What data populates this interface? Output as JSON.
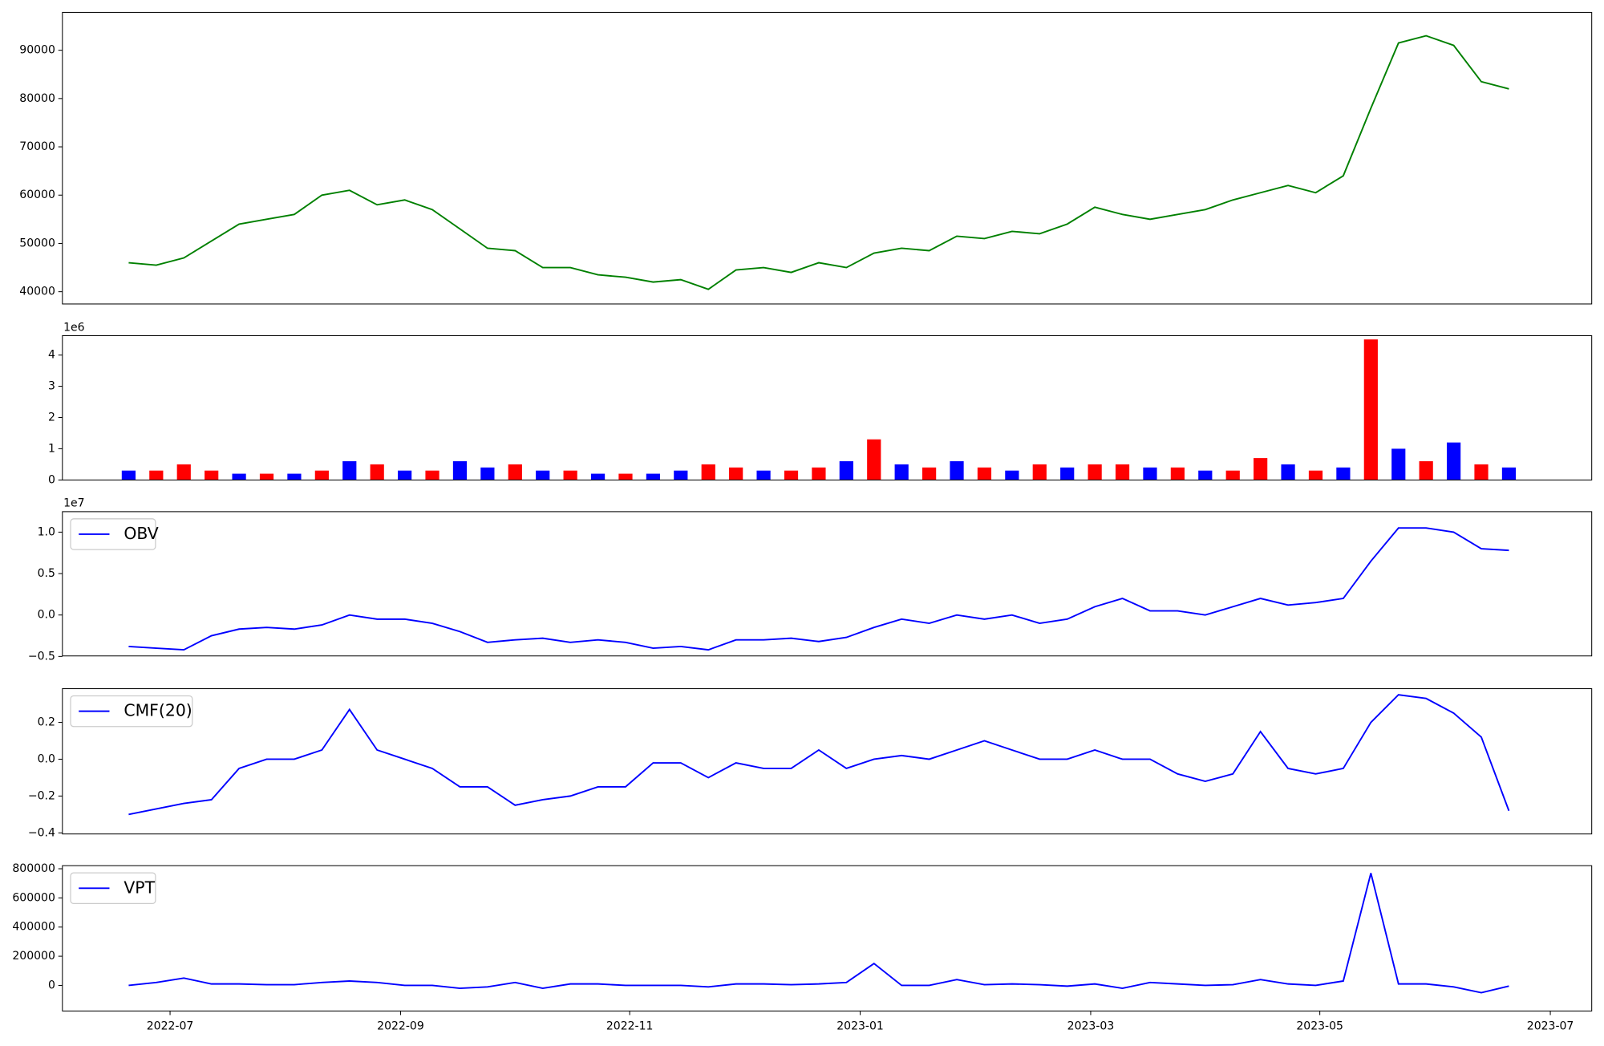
{
  "chart_data": [
    {
      "type": "line",
      "x": [
        2022.47,
        2022.49,
        2022.51,
        2022.53,
        2022.55,
        2022.57,
        2022.59,
        2022.61,
        2022.63,
        2022.65,
        2022.67,
        2022.69,
        2022.71,
        2022.73,
        2022.75,
        2022.77,
        2022.79,
        2022.81,
        2022.83,
        2022.85,
        2022.87,
        2022.89,
        2022.91,
        2022.93,
        2022.95,
        2022.97,
        2022.99,
        2023.01,
        2023.03,
        2023.05,
        2023.07,
        2023.09,
        2023.11,
        2023.13,
        2023.15,
        2023.17,
        2023.19,
        2023.21,
        2023.23,
        2023.25,
        2023.27,
        2023.29,
        2023.31,
        2023.33,
        2023.35,
        2023.37,
        2023.39,
        2023.41,
        2023.43,
        2023.45,
        2023.47
      ],
      "values": [
        46000,
        45500,
        47000,
        50500,
        54000,
        55000,
        56000,
        60000,
        61000,
        58000,
        59000,
        57000,
        53000,
        49000,
        48500,
        45000,
        45000,
        43500,
        43000,
        42000,
        42500,
        40500,
        44500,
        45000,
        44000,
        46000,
        45000,
        48000,
        49000,
        48500,
        51500,
        51000,
        52500,
        52000,
        54000,
        57500,
        56000,
        55000,
        56000,
        57000,
        59000,
        60500,
        62000,
        60500,
        64000,
        78000,
        91500,
        93000,
        91000,
        83500,
        82000
      ],
      "color": "green",
      "xlim": [
        2022.422,
        2023.53
      ],
      "ylim": [
        37460,
        97840
      ],
      "yticks": [
        40000,
        50000,
        60000,
        70000,
        80000,
        90000
      ]
    },
    {
      "type": "bar",
      "x": [
        2022.47,
        2022.49,
        2022.51,
        2022.53,
        2022.55,
        2022.57,
        2022.59,
        2022.61,
        2022.63,
        2022.65,
        2022.67,
        2022.69,
        2022.71,
        2022.73,
        2022.75,
        2022.77,
        2022.79,
        2022.81,
        2022.83,
        2022.85,
        2022.87,
        2022.89,
        2022.91,
        2022.93,
        2022.95,
        2022.97,
        2022.99,
        2023.01,
        2023.03,
        2023.05,
        2023.07,
        2023.09,
        2023.11,
        2023.13,
        2023.15,
        2023.17,
        2023.19,
        2023.21,
        2023.23,
        2023.25,
        2023.27,
        2023.29,
        2023.31,
        2023.33,
        2023.35,
        2023.37,
        2023.39,
        2023.41,
        2023.43,
        2023.45,
        2023.47
      ],
      "values": [
        0.3,
        0.3,
        0.5,
        0.3,
        0.2,
        0.2,
        0.2,
        0.3,
        0.6,
        0.5,
        0.3,
        0.3,
        0.6,
        0.4,
        0.5,
        0.3,
        0.3,
        0.2,
        0.2,
        0.2,
        0.3,
        0.5,
        0.4,
        0.3,
        0.3,
        0.4,
        0.6,
        1.3,
        0.5,
        0.4,
        0.6,
        0.4,
        0.3,
        0.5,
        0.4,
        0.5,
        0.5,
        0.4,
        0.4,
        0.3,
        0.3,
        0.7,
        0.5,
        0.3,
        0.4,
        4.5,
        1.0,
        0.6,
        1.2,
        0.5,
        0.4
      ],
      "colors": [
        "blue",
        "red",
        "red",
        "red",
        "blue",
        "red",
        "blue",
        "red",
        "blue",
        "red",
        "blue",
        "red",
        "blue",
        "blue",
        "red",
        "blue",
        "red",
        "blue",
        "red",
        "blue",
        "blue",
        "red",
        "red",
        "blue",
        "red",
        "red",
        "blue",
        "red",
        "blue",
        "red",
        "blue",
        "red",
        "blue",
        "red",
        "blue",
        "red",
        "red",
        "blue",
        "red",
        "blue",
        "red",
        "red",
        "blue",
        "red",
        "blue",
        "red",
        "blue",
        "red",
        "blue",
        "red",
        "blue"
      ],
      "xlim": [
        2022.422,
        2023.53
      ],
      "ylim": [
        0,
        4.62
      ],
      "yticks": [
        0,
        1,
        2,
        3,
        4
      ],
      "y_offset_label": "1e6"
    },
    {
      "type": "line",
      "x": [
        2022.47,
        2022.49,
        2022.51,
        2022.53,
        2022.55,
        2022.57,
        2022.59,
        2022.61,
        2022.63,
        2022.65,
        2022.67,
        2022.69,
        2022.71,
        2022.73,
        2022.75,
        2022.77,
        2022.79,
        2022.81,
        2022.83,
        2022.85,
        2022.87,
        2022.89,
        2022.91,
        2022.93,
        2022.95,
        2022.97,
        2022.99,
        2023.01,
        2023.03,
        2023.05,
        2023.07,
        2023.09,
        2023.11,
        2023.13,
        2023.15,
        2023.17,
        2023.19,
        2023.21,
        2023.23,
        2023.25,
        2023.27,
        2023.29,
        2023.31,
        2023.33,
        2023.35,
        2023.37,
        2023.39,
        2023.41,
        2023.43,
        2023.45,
        2023.47
      ],
      "series": [
        {
          "name": "OBV",
          "color": "blue",
          "values": [
            -0.38,
            -0.4,
            -0.42,
            -0.25,
            -0.17,
            -0.15,
            -0.17,
            -0.12,
            0.0,
            -0.05,
            -0.05,
            -0.1,
            -0.2,
            -0.33,
            -0.3,
            -0.28,
            -0.33,
            -0.3,
            -0.33,
            -0.4,
            -0.38,
            -0.42,
            -0.3,
            -0.3,
            -0.28,
            -0.32,
            -0.27,
            -0.15,
            -0.05,
            -0.1,
            0.0,
            -0.05,
            0.0,
            -0.1,
            -0.05,
            0.1,
            0.2,
            0.05,
            0.05,
            0.0,
            0.1,
            0.2,
            0.12,
            0.15,
            0.2,
            0.65,
            1.05,
            1.05,
            1.0,
            0.8,
            0.78
          ]
        }
      ],
      "xlim": [
        2022.422,
        2023.53
      ],
      "ylim": [
        -0.494,
        1.247
      ],
      "yticks": [
        {
          "value": -0.5,
          "label": "−0.5"
        },
        {
          "value": 0,
          "label": "0.0"
        },
        {
          "value": 0.5,
          "label": "0.5"
        },
        {
          "value": 1,
          "label": "1.0"
        }
      ],
      "y_offset_label": "1e7",
      "legend": "upper left"
    },
    {
      "type": "line",
      "x": [
        2022.47,
        2022.49,
        2022.51,
        2022.53,
        2022.55,
        2022.57,
        2022.59,
        2022.61,
        2022.63,
        2022.65,
        2022.67,
        2022.69,
        2022.71,
        2022.73,
        2022.75,
        2022.77,
        2022.79,
        2022.81,
        2022.83,
        2022.85,
        2022.87,
        2022.89,
        2022.91,
        2022.93,
        2022.95,
        2022.97,
        2022.99,
        2023.01,
        2023.03,
        2023.05,
        2023.07,
        2023.09,
        2023.11,
        2023.13,
        2023.15,
        2023.17,
        2023.19,
        2023.21,
        2023.23,
        2023.25,
        2023.27,
        2023.29,
        2023.31,
        2023.33,
        2023.35,
        2023.37,
        2023.39,
        2023.41,
        2023.43,
        2023.45,
        2023.47
      ],
      "series": [
        {
          "name": "CMF(20)",
          "color": "blue",
          "values": [
            -0.3,
            -0.27,
            -0.24,
            -0.22,
            -0.05,
            0.0,
            0.0,
            0.05,
            0.27,
            0.05,
            0.0,
            -0.05,
            -0.15,
            -0.15,
            -0.25,
            -0.22,
            -0.2,
            -0.15,
            -0.15,
            -0.02,
            -0.02,
            -0.1,
            -0.02,
            -0.05,
            -0.05,
            0.05,
            -0.05,
            0.0,
            0.02,
            0.0,
            0.05,
            0.1,
            0.05,
            0.0,
            0.0,
            0.05,
            0.0,
            0.0,
            -0.08,
            -0.12,
            -0.08,
            0.15,
            -0.05,
            -0.08,
            -0.05,
            0.2,
            0.35,
            0.33,
            0.25,
            0.12,
            -0.28
          ]
        }
      ],
      "xlim": [
        2022.422,
        2023.53
      ],
      "ylim": [
        -0.406,
        0.383
      ],
      "yticks": [
        {
          "value": -0.4,
          "label": "−0.4"
        },
        {
          "value": -0.2,
          "label": "−0.2"
        },
        {
          "value": 0,
          "label": "0.0"
        },
        {
          "value": 0.2,
          "label": "0.2"
        }
      ],
      "legend": "upper left"
    },
    {
      "type": "line",
      "x": [
        2022.47,
        2022.49,
        2022.51,
        2022.53,
        2022.55,
        2022.57,
        2022.59,
        2022.61,
        2022.63,
        2022.65,
        2022.67,
        2022.69,
        2022.71,
        2022.73,
        2022.75,
        2022.77,
        2022.79,
        2022.81,
        2022.83,
        2022.85,
        2022.87,
        2022.89,
        2022.91,
        2022.93,
        2022.95,
        2022.97,
        2022.99,
        2023.01,
        2023.03,
        2023.05,
        2023.07,
        2023.09,
        2023.11,
        2023.13,
        2023.15,
        2023.17,
        2023.19,
        2023.21,
        2023.23,
        2023.25,
        2023.27,
        2023.29,
        2023.31,
        2023.33,
        2023.35,
        2023.37,
        2023.39,
        2023.41,
        2023.43,
        2023.45,
        2023.47
      ],
      "series": [
        {
          "name": "VPT",
          "color": "blue",
          "values": [
            0,
            20000,
            50000,
            10000,
            10000,
            5000,
            5000,
            20000,
            30000,
            20000,
            0,
            0,
            -20000,
            -10000,
            20000,
            -20000,
            10000,
            10000,
            0,
            0,
            0,
            -10000,
            10000,
            10000,
            5000,
            10000,
            20000,
            150000,
            0,
            0,
            40000,
            5000,
            10000,
            5000,
            -5000,
            10000,
            -20000,
            20000,
            10000,
            0,
            5000,
            40000,
            10000,
            0,
            30000,
            770000,
            10000,
            10000,
            -10000,
            -50000,
            -5000
          ]
        }
      ],
      "xlim": [
        2022.422,
        2023.53
      ],
      "ylim": [
        -175400,
        821000
      ],
      "yticks": [
        0,
        200000,
        400000,
        600000,
        800000
      ],
      "xticks": [
        {
          "value": 2022.5,
          "label": "2022-07"
        },
        {
          "value": 2022.667,
          "label": "2022-09"
        },
        {
          "value": 2022.833,
          "label": "2022-11"
        },
        {
          "value": 2023.0,
          "label": "2023-01"
        },
        {
          "value": 2023.167,
          "label": "2023-03"
        },
        {
          "value": 2023.333,
          "label": "2023-05"
        },
        {
          "value": 2023.5,
          "label": "2023-07"
        }
      ],
      "legend": "upper left"
    }
  ]
}
